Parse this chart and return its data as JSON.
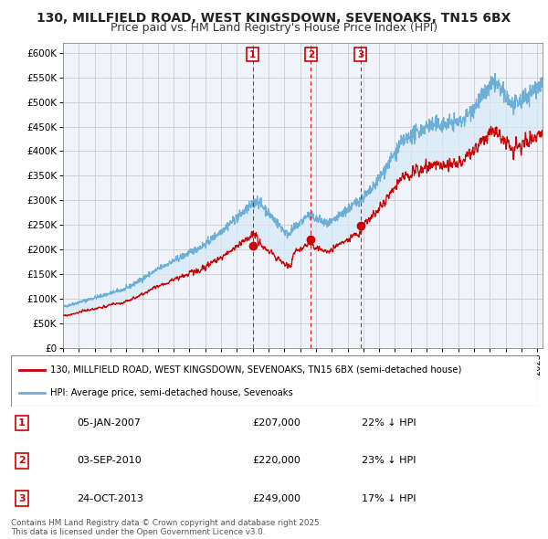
{
  "title": "130, MILLFIELD ROAD, WEST KINGSDOWN, SEVENOAKS, TN15 6BX",
  "subtitle": "Price paid vs. HM Land Registry's House Price Index (HPI)",
  "title_fontsize": 10.5,
  "subtitle_fontsize": 9.5,
  "hpi_color": "#6baed6",
  "hpi_fill_color": "#d6e8f5",
  "price_color": "#cc0000",
  "sales": [
    {
      "date": "2007-01-05",
      "price": 207000,
      "label": "1"
    },
    {
      "date": "2010-09-03",
      "price": 220000,
      "label": "2"
    },
    {
      "date": "2013-10-24",
      "price": 249000,
      "label": "3"
    }
  ],
  "table_entries": [
    {
      "num": "1",
      "date": "05-JAN-2007",
      "price": "£207,000",
      "note": "22% ↓ HPI"
    },
    {
      "num": "2",
      "date": "03-SEP-2010",
      "price": "£220,000",
      "note": "23% ↓ HPI"
    },
    {
      "num": "3",
      "date": "24-OCT-2013",
      "price": "£249,000",
      "note": "17% ↓ HPI"
    }
  ],
  "legend_entries": [
    "130, MILLFIELD ROAD, WEST KINGSDOWN, SEVENOAKS, TN15 6BX (semi-detached house)",
    "HPI: Average price, semi-detached house, Sevenoaks"
  ],
  "footer": "Contains HM Land Registry data © Crown copyright and database right 2025.\nThis data is licensed under the Open Government Licence v3.0.",
  "ylim": [
    0,
    620000
  ],
  "yticks": [
    0,
    50000,
    100000,
    150000,
    200000,
    250000,
    300000,
    350000,
    400000,
    450000,
    500000,
    550000,
    600000
  ],
  "xstart_year": 1995,
  "xend_year": 2025
}
